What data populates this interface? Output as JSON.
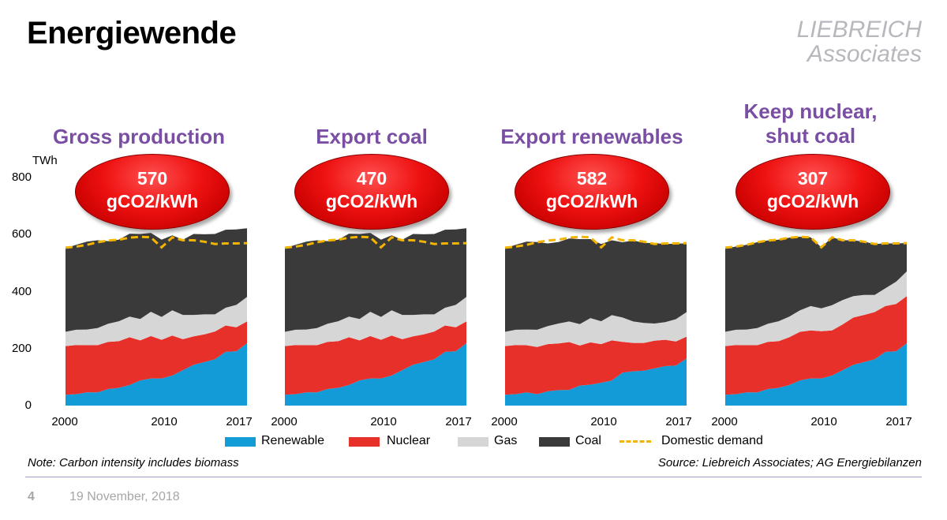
{
  "slide": {
    "title": "Energiewende",
    "logo_line1": "LIEBREICH",
    "logo_line2": "Associates",
    "page_number": "4",
    "date": "19 November, 2018",
    "note": "Note: Carbon intensity includes biomass",
    "source": "Source: Liebreich Associates; AG Energiebilanzen"
  },
  "colors": {
    "renewable": "#139bd8",
    "nuclear": "#e8302a",
    "gas": "#d6d6d6",
    "coal": "#3a3a3a",
    "demand": "#f2b400",
    "heading": "#7a4fa3"
  },
  "axis": {
    "unit": "TWh",
    "yticks": [
      "800",
      "600",
      "400",
      "200",
      "0"
    ],
    "xticks": [
      "2000",
      "2010",
      "2017"
    ]
  },
  "legend": {
    "renewable": "Renewable",
    "nuclear": "Nuclear",
    "gas": "Gas",
    "coal": "Coal",
    "demand": "Domestic demand"
  },
  "panels": [
    {
      "heading_line1": "Gross production",
      "heading_line2": "",
      "value": "570",
      "unit": "gCO2/kWh"
    },
    {
      "heading_line1": "Export coal",
      "heading_line2": "",
      "value": "470",
      "unit": "gCO2/kWh"
    },
    {
      "heading_line1": "Export renewables",
      "heading_line2": "",
      "value": "582",
      "unit": "gCO2/kWh"
    },
    {
      "heading_line1": "Keep nuclear,",
      "heading_line2": "shut coal",
      "value": "307",
      "unit": "gCO2/kWh"
    }
  ],
  "chart_data": [
    {
      "type": "area",
      "title": "Gross production",
      "stacked": true,
      "x": [
        2000,
        2001,
        2002,
        2003,
        2004,
        2005,
        2006,
        2007,
        2008,
        2009,
        2010,
        2011,
        2012,
        2013,
        2014,
        2015,
        2016,
        2017
      ],
      "ylabel": "TWh",
      "ylim": [
        0,
        800
      ],
      "series": [
        {
          "name": "Renewable",
          "values": [
            38,
            40,
            46,
            46,
            58,
            62,
            72,
            88,
            95,
            95,
            105,
            124,
            143,
            152,
            162,
            188,
            190,
            218
          ]
        },
        {
          "name": "Nuclear",
          "values": [
            170,
            172,
            165,
            165,
            165,
            163,
            167,
            140,
            148,
            135,
            140,
            108,
            99,
            97,
            97,
            92,
            84,
            76
          ]
        },
        {
          "name": "Gas",
          "values": [
            50,
            53,
            55,
            60,
            63,
            70,
            72,
            75,
            85,
            80,
            88,
            85,
            75,
            70,
            60,
            62,
            78,
            86
          ]
        },
        {
          "name": "Coal",
          "values": [
            292,
            297,
            307,
            307,
            289,
            285,
            290,
            297,
            276,
            270,
            262,
            263,
            283,
            280,
            281,
            273,
            264,
            240
          ]
        },
        {
          "name": "Domestic demand",
          "type": "line",
          "values": [
            552,
            556,
            562,
            571,
            577,
            580,
            587,
            590,
            588,
            553,
            588,
            578,
            578,
            573,
            565,
            567,
            567,
            568
          ]
        }
      ]
    },
    {
      "type": "area",
      "title": "Export coal",
      "stacked": true,
      "x": [
        2000,
        2001,
        2002,
        2003,
        2004,
        2005,
        2006,
        2007,
        2008,
        2009,
        2010,
        2011,
        2012,
        2013,
        2014,
        2015,
        2016,
        2017
      ],
      "ylabel": "TWh",
      "ylim": [
        0,
        800
      ],
      "series": [
        {
          "name": "Renewable",
          "values": [
            38,
            40,
            46,
            46,
            58,
            62,
            72,
            88,
            95,
            95,
            105,
            124,
            143,
            152,
            162,
            188,
            190,
            218
          ]
        },
        {
          "name": "Nuclear",
          "values": [
            170,
            172,
            165,
            165,
            165,
            163,
            167,
            140,
            148,
            135,
            140,
            108,
            99,
            97,
            97,
            92,
            84,
            76
          ]
        },
        {
          "name": "Gas",
          "values": [
            50,
            53,
            55,
            60,
            63,
            70,
            72,
            75,
            85,
            80,
            88,
            85,
            75,
            70,
            60,
            62,
            78,
            86
          ]
        },
        {
          "name": "Coal",
          "values": [
            292,
            297,
            307,
            307,
            289,
            285,
            290,
            297,
            276,
            270,
            262,
            263,
            283,
            280,
            281,
            273,
            264,
            240
          ]
        },
        {
          "name": "Domestic demand",
          "type": "line",
          "values": [
            552,
            556,
            562,
            571,
            577,
            580,
            587,
            590,
            588,
            553,
            588,
            578,
            578,
            573,
            565,
            567,
            567,
            568
          ]
        }
      ]
    },
    {
      "type": "area",
      "title": "Export renewables",
      "stacked": true,
      "x": [
        2000,
        2001,
        2002,
        2003,
        2004,
        2005,
        2006,
        2007,
        2008,
        2009,
        2010,
        2011,
        2012,
        2013,
        2014,
        2015,
        2016,
        2017
      ],
      "ylabel": "TWh",
      "ylim": [
        0,
        800
      ],
      "series": [
        {
          "name": "Renewable",
          "values": [
            38,
            40,
            46,
            40,
            50,
            54,
            55,
            70,
            73,
            80,
            88,
            115,
            120,
            122,
            130,
            138,
            140,
            165
          ]
        },
        {
          "name": "Nuclear",
          "values": [
            170,
            172,
            165,
            165,
            165,
            163,
            167,
            140,
            148,
            135,
            140,
            108,
            99,
            97,
            97,
            92,
            84,
            76
          ]
        },
        {
          "name": "Gas",
          "values": [
            50,
            53,
            55,
            60,
            63,
            70,
            72,
            75,
            85,
            80,
            88,
            85,
            75,
            70,
            60,
            62,
            78,
            86
          ]
        },
        {
          "name": "Coal",
          "values": [
            292,
            297,
            307,
            307,
            289,
            285,
            290,
            297,
            276,
            270,
            262,
            263,
            283,
            280,
            281,
            273,
            264,
            240
          ]
        },
        {
          "name": "Domestic demand",
          "type": "line",
          "values": [
            552,
            556,
            562,
            571,
            577,
            580,
            587,
            590,
            588,
            553,
            588,
            578,
            578,
            573,
            565,
            567,
            567,
            568
          ]
        }
      ]
    },
    {
      "type": "area",
      "title": "Keep nuclear, shut coal",
      "stacked": true,
      "x": [
        2000,
        2001,
        2002,
        2003,
        2004,
        2005,
        2006,
        2007,
        2008,
        2009,
        2010,
        2011,
        2012,
        2013,
        2014,
        2015,
        2016,
        2017
      ],
      "ylabel": "TWh",
      "ylim": [
        0,
        800
      ],
      "series": [
        {
          "name": "Renewable",
          "values": [
            38,
            40,
            46,
            46,
            58,
            62,
            72,
            88,
            95,
            95,
            105,
            124,
            143,
            152,
            162,
            188,
            190,
            218
          ]
        },
        {
          "name": "Nuclear",
          "values": [
            170,
            172,
            165,
            165,
            165,
            163,
            167,
            170,
            168,
            165,
            158,
            160,
            165,
            165,
            165,
            160,
            165,
            165
          ]
        },
        {
          "name": "Gas",
          "values": [
            50,
            53,
            55,
            60,
            63,
            70,
            72,
            75,
            85,
            80,
            88,
            85,
            75,
            70,
            60,
            62,
            78,
            86
          ]
        },
        {
          "name": "Coal",
          "values": [
            292,
            291,
            296,
            300,
            291,
            285,
            276,
            257,
            240,
            213,
            237,
            209,
            195,
            186,
            178,
            157,
            134,
            99
          ]
        },
        {
          "name": "Domestic demand",
          "type": "line",
          "values": [
            552,
            556,
            562,
            571,
            577,
            580,
            587,
            590,
            588,
            553,
            588,
            578,
            578,
            573,
            565,
            567,
            567,
            568
          ]
        }
      ]
    }
  ]
}
